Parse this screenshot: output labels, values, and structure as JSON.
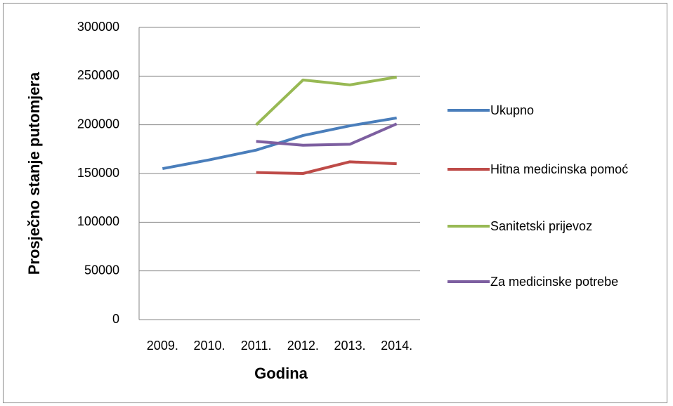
{
  "chart_data": {
    "type": "line",
    "categories": [
      "2009.",
      "2010.",
      "2011.",
      "2012.",
      "2013.",
      "2014."
    ],
    "series": [
      {
        "name": "Ukupno",
        "color": "#4a7ebb",
        "values": [
          155000,
          164000,
          174000,
          189000,
          199000,
          207000
        ]
      },
      {
        "name": "Hitna medicinska pomoć",
        "color": "#be4b48",
        "values": [
          null,
          null,
          151000,
          150000,
          162000,
          160000
        ]
      },
      {
        "name": "Sanitetski prijevoz",
        "color": "#98b954",
        "values": [
          null,
          null,
          200000,
          246000,
          241000,
          249000
        ]
      },
      {
        "name": "Za medicinske potrebe",
        "color": "#7d5fa0",
        "values": [
          null,
          null,
          183000,
          179000,
          180000,
          201000
        ]
      }
    ],
    "xlabel": "Godina",
    "ylabel": "Prosječno stanje putomjera",
    "ylim": [
      0,
      300000
    ],
    "yticks": [
      0,
      50000,
      100000,
      150000,
      200000,
      250000,
      300000
    ],
    "grid": true,
    "legend": "right"
  }
}
